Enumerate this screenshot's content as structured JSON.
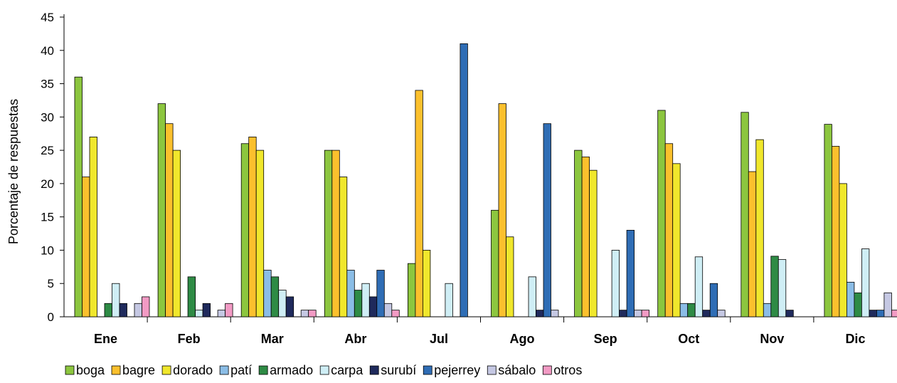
{
  "chart_data": {
    "type": "bar",
    "ylabel": "Porcentaje de respuestas",
    "xlabel": "",
    "ylim": [
      0,
      45
    ],
    "yticks": [
      0,
      5,
      10,
      15,
      20,
      25,
      30,
      35,
      40,
      45
    ],
    "grid": false,
    "legend_position": "bottom",
    "categories": [
      "Ene",
      "Feb",
      "Mar",
      "Abr",
      "Jul",
      "Ago",
      "Sep",
      "Oct",
      "Nov",
      "Dic"
    ],
    "series": [
      {
        "name": "boga",
        "color": "#8cc63f",
        "values": [
          36,
          32,
          26,
          25,
          8,
          16,
          25,
          31,
          30.7,
          28.9
        ]
      },
      {
        "name": "bagre",
        "color": "#fbc02d",
        "values": [
          21,
          29,
          27,
          25,
          34,
          32,
          24,
          26,
          21.8,
          25.6
        ]
      },
      {
        "name": "dorado",
        "color": "#f0e72c",
        "values": [
          27,
          25,
          25,
          21,
          10,
          12,
          22,
          23,
          26.6,
          20
        ]
      },
      {
        "name": "patí",
        "color": "#8bbde6",
        "values": [
          0,
          0,
          7,
          7,
          0,
          0,
          0,
          2,
          2,
          5.2
        ]
      },
      {
        "name": "armado",
        "color": "#2e8b45",
        "values": [
          2,
          6,
          6,
          4,
          0,
          0,
          0,
          2,
          9.1,
          3.6
        ]
      },
      {
        "name": "carpa",
        "color": "#cfeef5",
        "values": [
          5,
          1,
          4,
          5,
          5,
          6,
          10,
          9,
          8.6,
          10.2
        ]
      },
      {
        "name": "surubí",
        "color": "#1f2a5c",
        "values": [
          2,
          2,
          3,
          3,
          0,
          1,
          1,
          1,
          1,
          1
        ]
      },
      {
        "name": "pejerrey",
        "color": "#2f6db5",
        "values": [
          0,
          0,
          0,
          7,
          41,
          29,
          13,
          5,
          0,
          1
        ]
      },
      {
        "name": "sábalo",
        "color": "#c5c8e3",
        "values": [
          2,
          1,
          1,
          2,
          0,
          1,
          1,
          1,
          0,
          3.6
        ]
      },
      {
        "name": "otros",
        "color": "#f29ac4",
        "values": [
          3,
          2,
          1,
          1,
          0,
          0,
          1,
          0,
          0,
          1
        ]
      }
    ]
  }
}
